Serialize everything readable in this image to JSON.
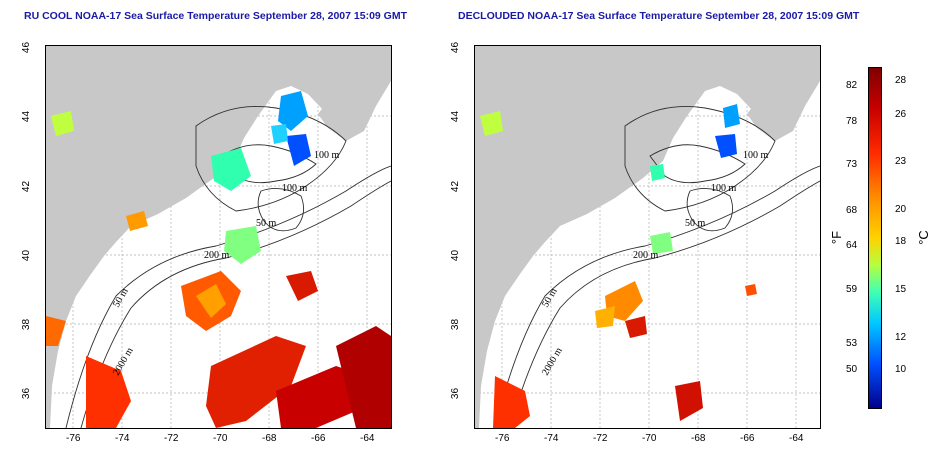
{
  "titles": {
    "left": "RU COOL NOAA-17 Sea Surface Temperature September 28, 2007 15:09 GMT",
    "right": "DECLOUDED NOAA-17 Sea Surface Temperature September 28, 2007 15:09 GMT"
  },
  "axes": {
    "x_ticks": [
      "-76",
      "-74",
      "-72",
      "-70",
      "-68",
      "-66",
      "-64"
    ],
    "y_ticks": [
      "46",
      "44",
      "42",
      "40",
      "38",
      "36"
    ],
    "lon_range": [
      -77.0,
      -63.0
    ],
    "lat_range": [
      35.0,
      46.0
    ]
  },
  "contour_labels": {
    "left": [
      "100 m",
      "100 m",
      "50 m",
      "200 m",
      "50 m",
      "2000 m"
    ],
    "right": [
      "100 m",
      "100 m",
      "50 m",
      "200 m",
      "50 m",
      "2000 m"
    ]
  },
  "colorbar": {
    "fahrenheit_label": "°F",
    "celsius_label": "°C",
    "fahrenheit_ticks": [
      "82",
      "78",
      "73",
      "68",
      "64",
      "59",
      "53",
      "50"
    ],
    "celsius_ticks": [
      "28",
      "26",
      "23",
      "20",
      "18",
      "15",
      "12",
      "10"
    ],
    "celsius_range": [
      8,
      29
    ]
  },
  "colors": {
    "land": "#c8c8c8",
    "ocean": "#ffffff",
    "grid": "#b0b0b0",
    "contour": "#303030",
    "title": "#1a1aa6"
  }
}
